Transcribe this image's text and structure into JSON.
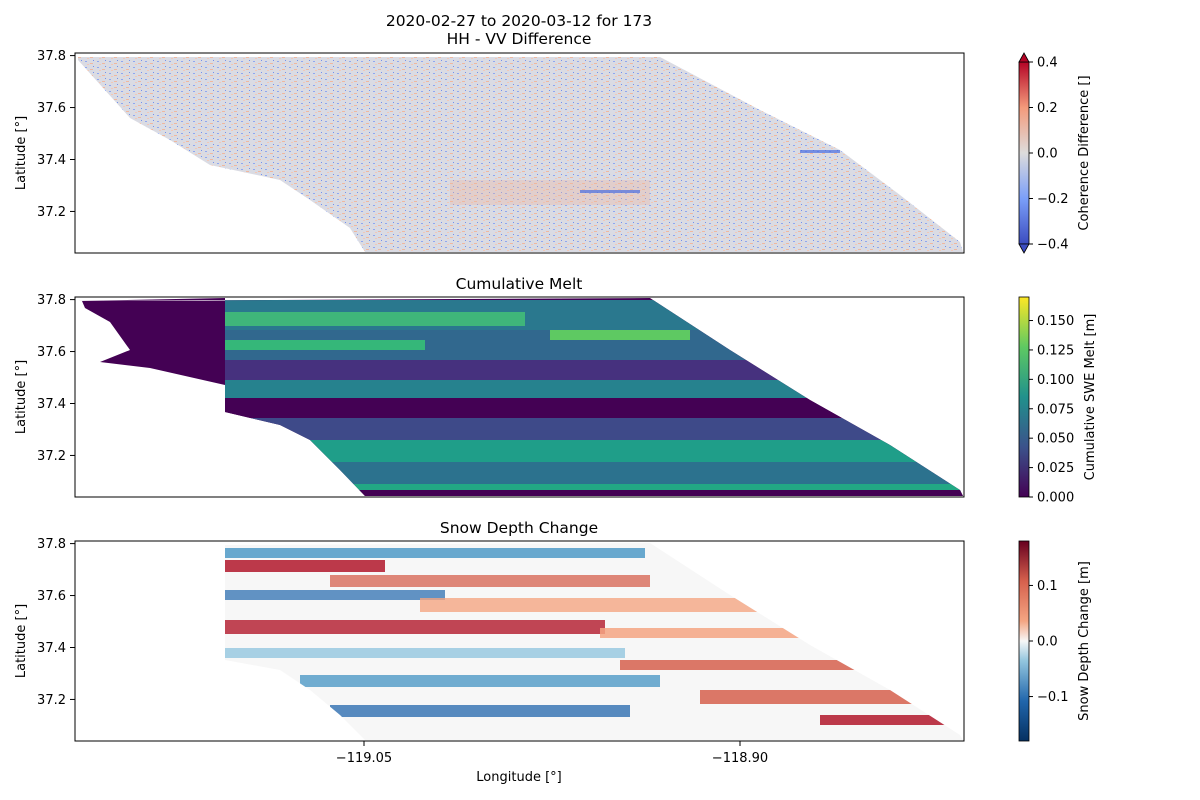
{
  "figure": {
    "suptitle_line1": "2020-02-27 to 2020-03-12 for 173",
    "xlabel": "Longitude [°]"
  },
  "chart_data": [
    {
      "type": "heatmap",
      "title": "HH - VV Difference",
      "xlabel": "",
      "ylabel": "Latitude [°]",
      "ylim": [
        37.04,
        37.81
      ],
      "yticks": [
        "37.2",
        "37.4",
        "37.6",
        "37.8"
      ],
      "colorbar": {
        "label": "Coherence Difference []",
        "colormap": "coolwarm",
        "range": [
          -0.4,
          0.4
        ],
        "ticks": [
          "−0.4",
          "−0.2",
          "0.0",
          "0.2",
          "0.4"
        ],
        "extend": "both"
      }
    },
    {
      "type": "heatmap",
      "title": "Cumulative Melt",
      "xlabel": "",
      "ylabel": "Latitude [°]",
      "ylim": [
        37.04,
        37.81
      ],
      "yticks": [
        "37.2",
        "37.4",
        "37.6",
        "37.8"
      ],
      "colorbar": {
        "label": "Cumulative SWE Melt [m]",
        "colormap": "viridis",
        "range": [
          0.0,
          0.17
        ],
        "ticks": [
          "0.000",
          "0.025",
          "0.050",
          "0.075",
          "0.100",
          "0.125",
          "0.150"
        ]
      }
    },
    {
      "type": "heatmap",
      "title": "Snow Depth Change",
      "xlabel": "Longitude [°]",
      "ylabel": "Latitude [°]",
      "xlim": [
        -119.1,
        -118.85
      ],
      "xticks": [
        "−119.05",
        "−118.90"
      ],
      "ylim": [
        37.04,
        37.81
      ],
      "yticks": [
        "37.2",
        "37.4",
        "37.6",
        "37.8"
      ],
      "colorbar": {
        "label": "Snow Depth Change [m]",
        "colormap": "RdBu_r",
        "range": [
          -0.18,
          0.18
        ],
        "ticks": [
          "−0.1",
          "0.0",
          "0.1"
        ]
      }
    }
  ]
}
